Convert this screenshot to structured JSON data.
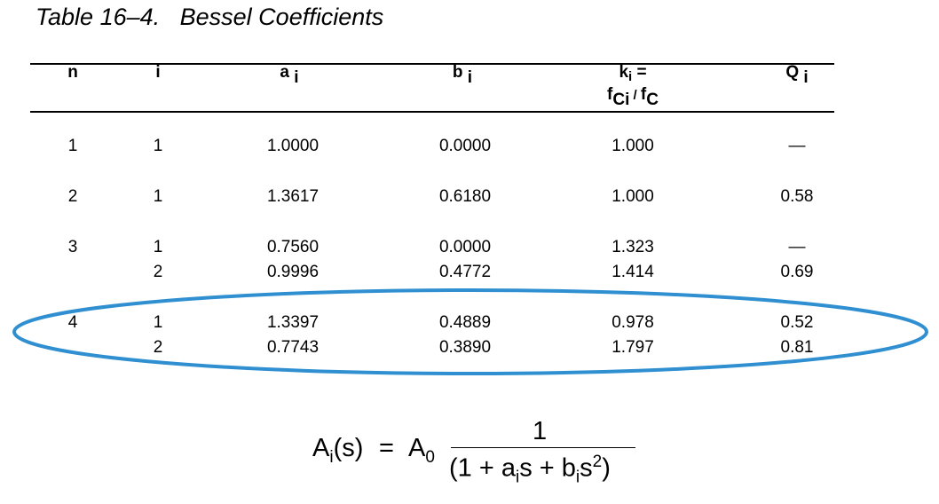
{
  "table": {
    "title": "Table 16–4.   Bessel Coefficients",
    "headers": {
      "n": "n",
      "i": "i",
      "a": "a",
      "a_sub": "i",
      "b": "b",
      "b_sub": "i",
      "k_line1": "k",
      "k_line1_sub": "i",
      "k_line1_eq": " =",
      "k_line2_f1": "f",
      "k_line2_f1_sub": "Ci",
      "k_line2_sep": " / ",
      "k_line2_f2": "f",
      "k_line2_f2_sub": "C",
      "q": "Q",
      "q_sub": "i"
    },
    "rows": [
      {
        "n": "1",
        "i": "1",
        "a": "1.0000",
        "b": "0.0000",
        "k": "1.000",
        "q": "—"
      },
      {
        "n": "2",
        "i": "1",
        "a": "1.3617",
        "b": "0.6180",
        "k": "1.000",
        "q": "0.58"
      },
      {
        "n": "3",
        "i": "1",
        "a": "0.7560",
        "b": "0.0000",
        "k": "1.323",
        "q": "—"
      },
      {
        "n": "",
        "i": "2",
        "a": "0.9996",
        "b": "0.4772",
        "k": "1.414",
        "q": "0.69"
      },
      {
        "n": "4",
        "i": "1",
        "a": "1.3397",
        "b": "0.4889",
        "k": "0.978",
        "q": "0.52"
      },
      {
        "n": "",
        "i": "2",
        "a": "0.7743",
        "b": "0.3890",
        "k": "1.797",
        "q": "0.81"
      }
    ]
  },
  "formula": {
    "lhs": "A",
    "lhs_sub": "i",
    "lhs_arg": "(s)",
    "equals": "=",
    "a0": "A",
    "a0_sub": "0",
    "numerator": "1",
    "den_open": "(1 + a",
    "den_sub1": "i",
    "den_mid": "s + b",
    "den_sub2": "i",
    "den_s": "s",
    "den_sup": "2",
    "den_close": ")"
  },
  "highlight": {
    "color": "#2f8fd0"
  }
}
